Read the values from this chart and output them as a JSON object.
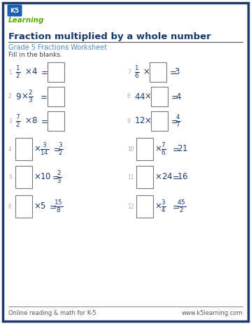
{
  "title": "Fraction multiplied by a whole number",
  "subtitle": "Grade 5 Fractions Worksheet",
  "instruction": "Fill in the blanks.",
  "border_color": "#1a3a6b",
  "title_color": "#1a3a6b",
  "subtitle_color": "#4a90c4",
  "text_color": "#333333",
  "footer_left": "Online reading & math for K-5",
  "footer_right": "www.k5learning.com",
  "bg_color": "#ffffff",
  "num_color": "#aaaaaa",
  "eq_color": "#1a3a6b"
}
